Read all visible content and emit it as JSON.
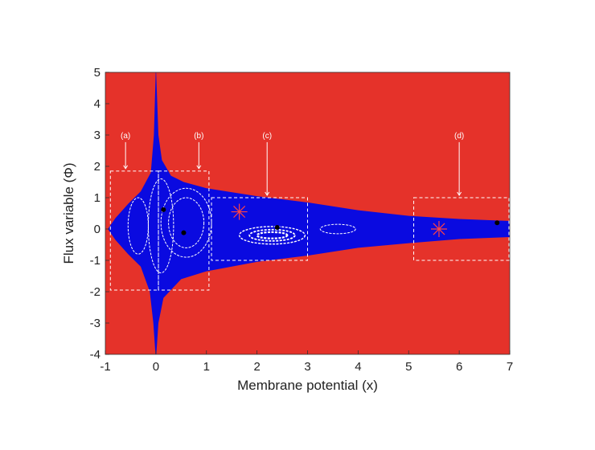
{
  "chart_data": {
    "type": "scatter",
    "title": "",
    "xlabel": "Membrane potential (x)",
    "ylabel": "Flux variable (Φ)",
    "xlim": [
      -1,
      7
    ],
    "ylim": [
      -4,
      5
    ],
    "xticks": [
      "-1",
      "0",
      "1",
      "2",
      "3",
      "4",
      "5",
      "6",
      "7"
    ],
    "yticks": [
      "-4",
      "-3",
      "-2",
      "-1",
      "0",
      "1",
      "2",
      "3",
      "4",
      "5"
    ],
    "grid": false,
    "colors": {
      "background": "#e5322a",
      "region": "#0a0ae0",
      "orbits": "#ffffff",
      "box_outline": "#ffffff",
      "star_marker": "#ff4444",
      "points": "#000000",
      "axis": "#333333"
    },
    "regions": [
      {
        "label": "(a)",
        "x": [
          -0.9,
          0.05
        ],
        "y": [
          -1.95,
          1.85
        ]
      },
      {
        "label": "(b)",
        "x": [
          0.05,
          1.05
        ],
        "y": [
          -1.95,
          1.85
        ]
      },
      {
        "label": "(c)",
        "x": [
          1.1,
          3.0
        ],
        "y": [
          -1.0,
          1.0
        ]
      },
      {
        "label": "(d)",
        "x": [
          5.1,
          7.0
        ],
        "y": [
          -1.0,
          1.0
        ]
      }
    ],
    "region_label_anchors": [
      {
        "label": "(a)",
        "x": -0.6,
        "y": 2.9
      },
      {
        "label": "(b)",
        "x": 0.85,
        "y": 2.9
      },
      {
        "label": "(c)",
        "x": 2.2,
        "y": 2.9
      },
      {
        "label": "(d)",
        "x": 6.0,
        "y": 2.9
      }
    ],
    "star_markers": [
      {
        "x": 1.65,
        "y": 0.55
      },
      {
        "x": 5.6,
        "y": 0.0
      }
    ],
    "points": [
      {
        "x": 0.15,
        "y": 0.62
      },
      {
        "x": 0.55,
        "y": -0.12
      },
      {
        "x": 2.4,
        "y": 0.05
      },
      {
        "x": 6.75,
        "y": 0.2
      }
    ]
  }
}
